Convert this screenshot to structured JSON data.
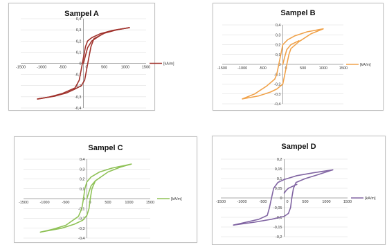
{
  "chart_data": [
    {
      "type": "line",
      "title": "Sampel A",
      "xlabel": "",
      "ylabel": "",
      "xlim": [
        -1500,
        1500
      ],
      "ylim": [
        -0.4,
        0.4
      ],
      "xticks": [
        -1500,
        -1000,
        -500,
        0,
        500,
        1000,
        1500
      ],
      "xtick_labels": [
        "-1500",
        "-1000",
        "-500",
        "0",
        "500",
        "1000",
        "1500"
      ],
      "yticks": [
        0.4,
        0.3,
        0.2,
        0.1,
        0,
        -0.1,
        -0.2,
        -0.3,
        -0.4
      ],
      "ytick_labels": [
        "0,4",
        "0,3",
        "0,2",
        "0,1",
        "0",
        "-0,1",
        "-0,2",
        "-0,3",
        "-0,4"
      ],
      "grid": true,
      "legend_position": "right",
      "series": [
        {
          "name": "[kA/m]",
          "color": "#a0322c",
          "branches": [
            [
              [
                1100,
                0.32
              ],
              [
                700,
                0.295
              ],
              [
                400,
                0.265
              ],
              [
                200,
                0.23
              ],
              [
                100,
                0.2
              ],
              [
                50,
                0.15
              ],
              [
                0,
                0.05
              ],
              [
                -50,
                -0.05
              ],
              [
                -100,
                -0.15
              ],
              [
                -200,
                -0.22
              ],
              [
                -500,
                -0.27
              ],
              [
                -800,
                -0.3
              ],
              [
                -1100,
                -0.32
              ]
            ],
            [
              [
                -1100,
                -0.32
              ],
              [
                -700,
                -0.295
              ],
              [
                -400,
                -0.265
              ],
              [
                -200,
                -0.23
              ],
              [
                -50,
                -0.2
              ],
              [
                30,
                -0.15
              ],
              [
                80,
                -0.05
              ],
              [
                130,
                0.05
              ],
              [
                180,
                0.15
              ],
              [
                250,
                0.22
              ],
              [
                500,
                0.27
              ],
              [
                800,
                0.3
              ],
              [
                1100,
                0.32
              ]
            ],
            [
              [
                0,
                0
              ],
              [
                50,
                0.07
              ],
              [
                100,
                0.14
              ],
              [
                200,
                0.2
              ],
              [
                400,
                0.25
              ]
            ]
          ]
        }
      ]
    },
    {
      "type": "line",
      "title": "Sampel B",
      "xlabel": "",
      "ylabel": "",
      "xlim": [
        -1500,
        1500
      ],
      "ylim": [
        -0.4,
        0.4
      ],
      "xticks": [
        -1500,
        -1000,
        -500,
        0,
        500,
        1000,
        1500
      ],
      "xtick_labels": [
        "-1500",
        "-1000",
        "-500",
        "0",
        "500",
        "1000",
        "1500"
      ],
      "yticks": [
        0.4,
        0.3,
        0.2,
        0.1,
        0,
        -0.1,
        -0.2,
        -0.3,
        -0.4
      ],
      "ytick_labels": [
        "0,4",
        "0,3",
        "0,2",
        "0,1",
        "0",
        "-0,1",
        "-0,2",
        "-0,3",
        "-0,4"
      ],
      "grid": true,
      "legend_position": "right",
      "series": [
        {
          "name": "[kA/m]",
          "color": "#f0a24a",
          "branches": [
            [
              [
                1000,
                0.36
              ],
              [
                600,
                0.33
              ],
              [
                300,
                0.29
              ],
              [
                120,
                0.25
              ],
              [
                0,
                0.2
              ],
              [
                -50,
                0.1
              ],
              [
                -100,
                0
              ],
              [
                -150,
                -0.1
              ],
              [
                -200,
                -0.15
              ],
              [
                -400,
                -0.22
              ],
              [
                -700,
                -0.3
              ],
              [
                -1000,
                -0.35
              ]
            ],
            [
              [
                -1000,
                -0.35
              ],
              [
                -600,
                -0.32
              ],
              [
                -300,
                -0.28
              ],
              [
                -150,
                -0.25
              ],
              [
                0,
                -0.2
              ],
              [
                50,
                -0.1
              ],
              [
                100,
                0
              ],
              [
                150,
                0.1
              ],
              [
                200,
                0.16
              ],
              [
                400,
                0.23
              ],
              [
                700,
                0.31
              ],
              [
                1000,
                0.36
              ]
            ],
            [
              [
                0,
                0
              ],
              [
                50,
                0.08
              ],
              [
                100,
                0.15
              ],
              [
                200,
                0.2
              ],
              [
                400,
                0.24
              ]
            ]
          ]
        }
      ]
    },
    {
      "type": "line",
      "title": "Sampel C",
      "xlabel": "",
      "ylabel": "",
      "xlim": [
        -1500,
        1500
      ],
      "ylim": [
        -0.4,
        0.4
      ],
      "xticks": [
        -1500,
        -1000,
        -500,
        0,
        500,
        1000,
        1500
      ],
      "xtick_labels": [
        "-1500",
        "-1000",
        "-500",
        "0",
        "500",
        "1000",
        "1500"
      ],
      "yticks": [
        0.4,
        0.3,
        0.2,
        0.1,
        0,
        -0.1,
        -0.2,
        -0.3,
        -0.4
      ],
      "ytick_labels": [
        "0,4",
        "0,3",
        "0,2",
        "0,1",
        "0",
        "-0,1",
        "-0,2",
        "-0,3",
        "-0,4"
      ],
      "grid": true,
      "legend_position": "right",
      "series": [
        {
          "name": "[kA/m]",
          "color": "#8fc257",
          "branches": [
            [
              [
                1050,
                0.35
              ],
              [
                600,
                0.31
              ],
              [
                300,
                0.27
              ],
              [
                100,
                0.22
              ],
              [
                0,
                0.17
              ],
              [
                -50,
                0.1
              ],
              [
                -80,
                0
              ],
              [
                -120,
                -0.1
              ],
              [
                -200,
                -0.18
              ],
              [
                -500,
                -0.27
              ],
              [
                -800,
                -0.31
              ],
              [
                -1100,
                -0.34
              ]
            ],
            [
              [
                -1100,
                -0.34
              ],
              [
                -600,
                -0.3
              ],
              [
                -300,
                -0.26
              ],
              [
                -100,
                -0.22
              ],
              [
                0,
                -0.17
              ],
              [
                50,
                -0.1
              ],
              [
                80,
                0
              ],
              [
                120,
                0.1
              ],
              [
                200,
                0.18
              ],
              [
                500,
                0.27
              ],
              [
                800,
                0.32
              ],
              [
                1050,
                0.35
              ]
            ],
            [
              [
                0,
                0
              ],
              [
                50,
                0.07
              ],
              [
                100,
                0.13
              ],
              [
                200,
                0.18
              ]
            ]
          ]
        }
      ]
    },
    {
      "type": "line",
      "title": "Sampel D",
      "xlabel": "",
      "ylabel": "",
      "xlim": [
        -1500,
        1500
      ],
      "ylim": [
        -0.2,
        0.2
      ],
      "xticks": [
        -1500,
        -1000,
        -500,
        0,
        500,
        1000,
        1500
      ],
      "xtick_labels": [
        "-1500",
        "-1000",
        "-500",
        "0",
        "500",
        "1000",
        "1500"
      ],
      "yticks": [
        0.2,
        0.15,
        0.1,
        0.05,
        0,
        -0.05,
        -0.1,
        -0.15,
        -0.2
      ],
      "ytick_labels": [
        "0,2",
        "0,15",
        "0,1",
        "0,05",
        "0",
        "-0,05",
        "-0,1",
        "-0,15",
        "-0,2"
      ],
      "grid": true,
      "legend_position": "right",
      "series": [
        {
          "name": "[kA/m]",
          "color": "#8064a2",
          "branches": [
            [
              [
                1150,
                0.145
              ],
              [
                700,
                0.13
              ],
              [
                300,
                0.115
              ],
              [
                0,
                0.095
              ],
              [
                -150,
                0.08
              ],
              [
                -250,
                0.05
              ],
              [
                -300,
                0
              ],
              [
                -350,
                -0.05
              ],
              [
                -400,
                -0.09
              ],
              [
                -600,
                -0.11
              ],
              [
                -900,
                -0.125
              ],
              [
                -1200,
                -0.14
              ]
            ],
            [
              [
                -1200,
                -0.14
              ],
              [
                -700,
                -0.125
              ],
              [
                -300,
                -0.11
              ],
              [
                0,
                -0.095
              ],
              [
                100,
                -0.08
              ],
              [
                150,
                -0.05
              ],
              [
                180,
                0
              ],
              [
                220,
                0.05
              ],
              [
                280,
                0.08
              ],
              [
                500,
                0.1
              ],
              [
                800,
                0.12
              ],
              [
                1150,
                0.145
              ]
            ],
            [
              [
                0,
                0.025
              ],
              [
                50,
                0.04
              ],
              [
                100,
                0.05
              ],
              [
                200,
                0.06
              ],
              [
                300,
                0.07
              ]
            ]
          ]
        }
      ]
    }
  ]
}
